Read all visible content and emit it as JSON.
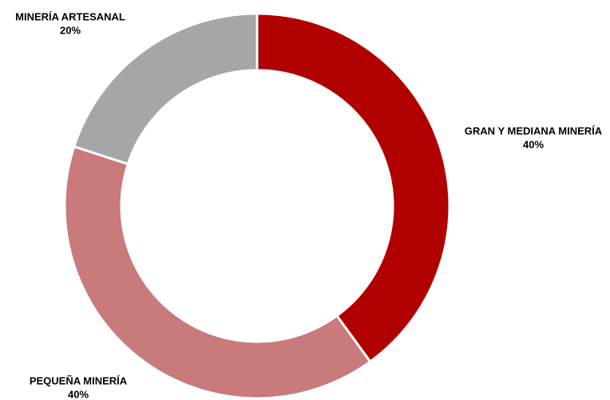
{
  "chart_data": {
    "type": "donut",
    "categories": [
      "GRAN Y MEDIANA MINERÍA",
      "PEQUEÑA MINERÍA",
      "MINERÍA ARTESANAL"
    ],
    "values": [
      40,
      40,
      20
    ],
    "value_labels": [
      "40%",
      "40%",
      "20%"
    ],
    "colors": [
      "#b00000",
      "#c97a7a",
      "#a6a6a6"
    ]
  }
}
